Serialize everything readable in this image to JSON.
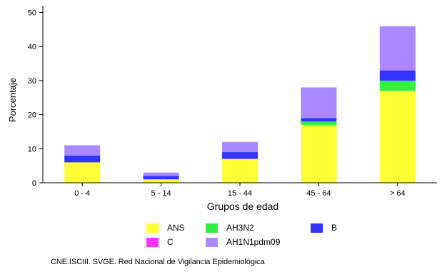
{
  "chart_data": {
    "type": "bar",
    "stacked": true,
    "xlabel": "Grupos de edad",
    "ylabel": "Porcentaje",
    "ylim": [
      0,
      52
    ],
    "yticks": [
      0,
      10,
      20,
      30,
      40,
      50
    ],
    "categories": [
      "0 - 4",
      "5 - 14",
      "15 - 44",
      "45 - 64",
      "> 64"
    ],
    "series": [
      {
        "name": "ANS",
        "color": "#ffff33",
        "values": [
          6,
          1,
          7,
          17,
          27
        ]
      },
      {
        "name": "AH3N2",
        "color": "#33ee44",
        "values": [
          0,
          0,
          0,
          1,
          3
        ]
      },
      {
        "name": "B",
        "color": "#3333ff",
        "values": [
          2,
          1,
          2,
          1,
          3
        ]
      },
      {
        "name": "C",
        "color": "#ff33ff",
        "values": [
          0,
          0,
          0,
          0,
          0
        ]
      },
      {
        "name": "AH1N1pdm09",
        "color": "#aa88ff",
        "values": [
          3,
          1,
          3,
          9,
          13
        ]
      }
    ],
    "legend_position": "bottom",
    "source": "CNE.ISCIII. SVGE. Red Nacional de Vigilancia Epidemiológica"
  }
}
